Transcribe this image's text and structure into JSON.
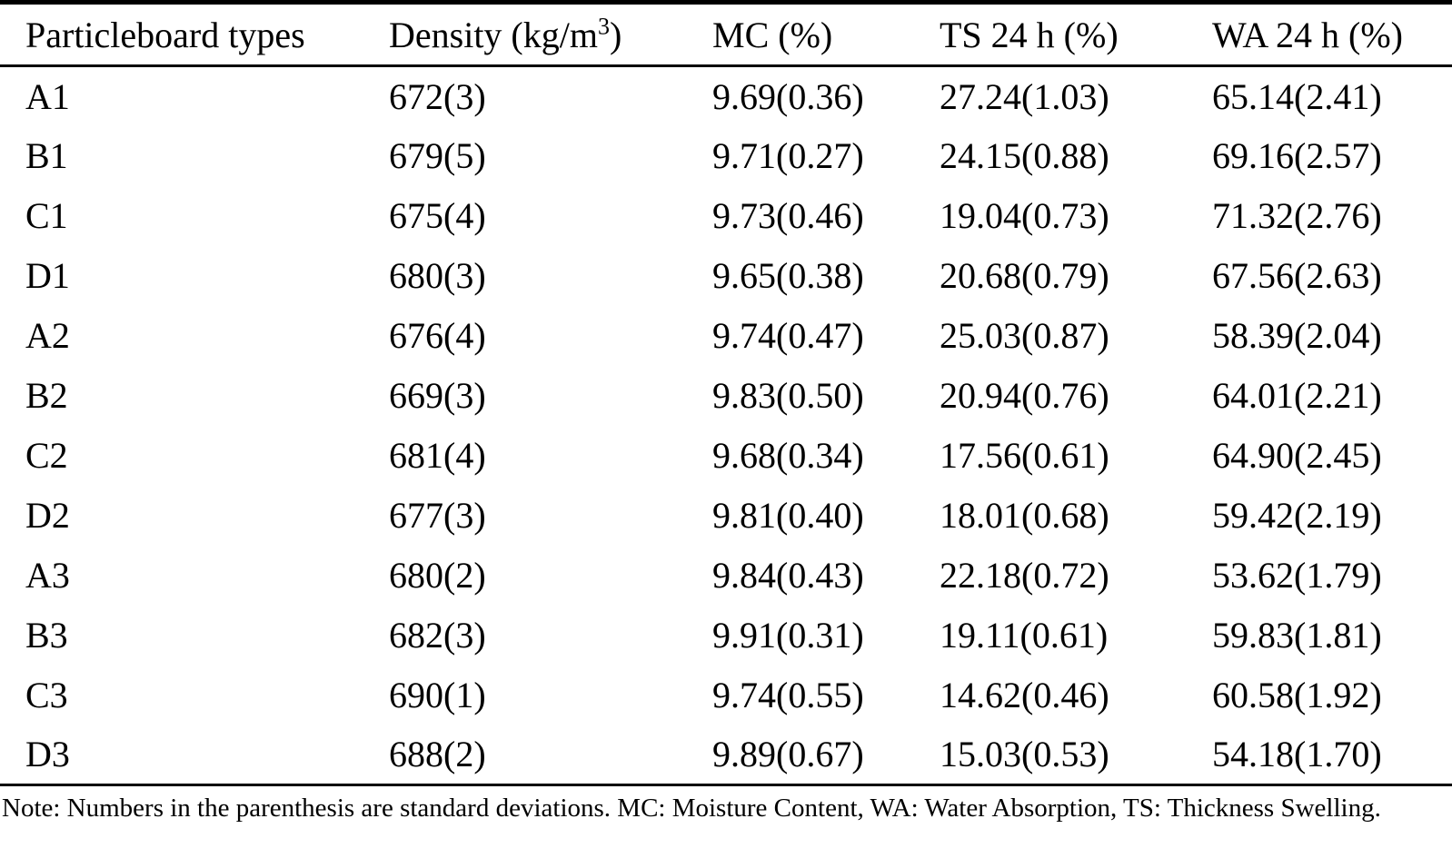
{
  "colors": {
    "text": "#000000",
    "background": "#ffffff",
    "rule": "#000000"
  },
  "table": {
    "header": {
      "col1": "Particleboard types",
      "col2_prefix": "Density (kg/m",
      "col2_sup": "3",
      "col2_suffix": ")",
      "col3": "MC (%)",
      "col4": "TS 24 h (%)",
      "col5": "WA 24 h (%)"
    },
    "rows": [
      {
        "type": "A1",
        "density": "672(3)",
        "mc": "9.69(0.36)",
        "ts": "27.24(1.03)",
        "wa": "65.14(2.41)"
      },
      {
        "type": "B1",
        "density": "679(5)",
        "mc": "9.71(0.27)",
        "ts": "24.15(0.88)",
        "wa": "69.16(2.57)"
      },
      {
        "type": "C1",
        "density": "675(4)",
        "mc": "9.73(0.46)",
        "ts": "19.04(0.73)",
        "wa": "71.32(2.76)"
      },
      {
        "type": "D1",
        "density": "680(3)",
        "mc": "9.65(0.38)",
        "ts": "20.68(0.79)",
        "wa": "67.56(2.63)"
      },
      {
        "type": "A2",
        "density": "676(4)",
        "mc": "9.74(0.47)",
        "ts": "25.03(0.87)",
        "wa": "58.39(2.04)"
      },
      {
        "type": "B2",
        "density": "669(3)",
        "mc": "9.83(0.50)",
        "ts": "20.94(0.76)",
        "wa": "64.01(2.21)"
      },
      {
        "type": "C2",
        "density": "681(4)",
        "mc": "9.68(0.34)",
        "ts": "17.56(0.61)",
        "wa": "64.90(2.45)"
      },
      {
        "type": "D2",
        "density": "677(3)",
        "mc": "9.81(0.40)",
        "ts": "18.01(0.68)",
        "wa": "59.42(2.19)"
      },
      {
        "type": "A3",
        "density": "680(2)",
        "mc": "9.84(0.43)",
        "ts": "22.18(0.72)",
        "wa": "53.62(1.79)"
      },
      {
        "type": "B3",
        "density": "682(3)",
        "mc": "9.91(0.31)",
        "ts": "19.11(0.61)",
        "wa": "59.83(1.81)"
      },
      {
        "type": "C3",
        "density": "690(1)",
        "mc": "9.74(0.55)",
        "ts": "14.62(0.46)",
        "wa": "60.58(1.92)"
      },
      {
        "type": "D3",
        "density": "688(2)",
        "mc": "9.89(0.67)",
        "ts": "15.03(0.53)",
        "wa": "54.18(1.70)"
      }
    ]
  },
  "footnote": {
    "text": "Note: Numbers in the parenthesis are standard deviations. MC: Moisture Content, WA: Water Absorption, TS: Thickness Swelling."
  }
}
